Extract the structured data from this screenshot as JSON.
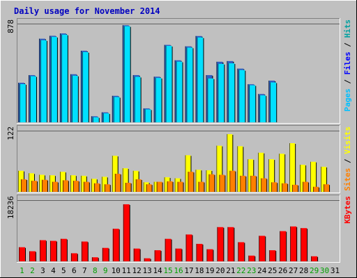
{
  "chart_data": {
    "type": "bar",
    "title": "Daily usage for November 2014",
    "colors": {
      "pages": "#00c0ff",
      "pages_shadow": "#3060c0",
      "files": "#00e0ff",
      "hits": "#00a0c0",
      "sites": "#ff8000",
      "visits": "#ffff00",
      "kbytes": "#ff0000",
      "weekend_label": "#00a000",
      "weekday_label": "#000000",
      "title": "#0000c0"
    },
    "days": [
      {
        "label": "1",
        "weekend": true
      },
      {
        "label": "2",
        "weekend": true
      },
      {
        "label": "3",
        "weekend": false
      },
      {
        "label": "4",
        "weekend": false
      },
      {
        "label": "5",
        "weekend": false
      },
      {
        "label": "6",
        "weekend": false
      },
      {
        "label": "7",
        "weekend": false
      },
      {
        "label": "8",
        "weekend": true
      },
      {
        "label": "9",
        "weekend": true
      },
      {
        "label": "10",
        "weekend": false
      },
      {
        "label": "11",
        "weekend": false
      },
      {
        "label": "12",
        "weekend": false
      },
      {
        "label": "13",
        "weekend": false
      },
      {
        "label": "14",
        "weekend": false
      },
      {
        "label": "15",
        "weekend": true
      },
      {
        "label": "16",
        "weekend": true
      },
      {
        "label": "17",
        "weekend": false
      },
      {
        "label": "18",
        "weekend": false
      },
      {
        "label": "19",
        "weekend": false
      },
      {
        "label": "20",
        "weekend": false
      },
      {
        "label": "21",
        "weekend": false
      },
      {
        "label": "22",
        "weekend": true
      },
      {
        "label": "23",
        "weekend": true
      },
      {
        "label": "24",
        "weekend": false
      },
      {
        "label": "25",
        "weekend": false
      },
      {
        "label": "26",
        "weekend": false
      },
      {
        "label": "27",
        "weekend": false
      },
      {
        "label": "28",
        "weekend": false
      },
      {
        "label": "29",
        "weekend": true
      },
      {
        "label": "30",
        "weekend": true
      },
      {
        "label": "31",
        "weekend": false
      }
    ],
    "panels": [
      {
        "name": "hits_files_pages",
        "ymax_label": "878",
        "ymax": 878,
        "right_label": [
          {
            "text": "Pages",
            "color": "#00c0ff"
          },
          {
            "text": " / ",
            "color": "#000000"
          },
          {
            "text": "Files",
            "color": "#0000ff"
          },
          {
            "text": " / ",
            "color": "#000000"
          },
          {
            "text": "Hits",
            "color": "#00a0a0"
          }
        ],
        "series": [
          {
            "key": "back",
            "values": [
              352,
              420,
              744,
              770,
              791,
              428,
              637,
              54,
              89,
              236,
              864,
              420,
              124,
              406,
              689,
              552,
              676,
              768,
              420,
              539,
              545,
              478,
              339,
              252,
              371,
              0,
              0,
              0,
              0,
              0,
              0
            ]
          },
          {
            "key": "front",
            "values": [
              340,
              410,
              730,
              760,
              780,
              415,
              625,
              45,
              80,
              225,
              855,
              405,
              115,
              395,
              680,
              540,
              665,
              755,
              390,
              520,
              525,
              465,
              330,
              240,
              355,
              0,
              0,
              0,
              0,
              0,
              0
            ]
          }
        ]
      },
      {
        "name": "visits_sites",
        "ymax_label": "122",
        "ymax": 122,
        "right_label": [
          {
            "text": "Sites",
            "color": "#ff8000"
          },
          {
            "text": " / ",
            "color": "#000000"
          },
          {
            "text": "Visits",
            "color": "#ffff00"
          }
        ],
        "series": [
          {
            "key": "visits",
            "values": [
              42,
              37,
              34,
              33,
              40,
              33,
              32,
              26,
              30,
              72,
              47,
              42,
              19,
              20,
              29,
              27,
              73,
              44,
              43,
              92,
              115,
              91,
              65,
              78,
              65,
              76,
              97,
              54,
              60,
              50,
              0
            ]
          },
          {
            "key": "sites",
            "values": [
              25,
              22,
              24,
              20,
              23,
              22,
              20,
              17,
              15,
              36,
              18,
              25,
              15,
              20,
              21,
              20,
              40,
              20,
              35,
              34,
              42,
              32,
              32,
              27,
              19,
              17,
              14,
              20,
              10,
              15,
              0
            ]
          }
        ]
      },
      {
        "name": "kbytes",
        "ymax_label": "18236",
        "ymax": 18236,
        "right_label": [
          {
            "text": "KBytes",
            "color": "#ff0000"
          }
        ],
        "series": [
          {
            "key": "kbytes",
            "values": [
              4200,
              3000,
              6300,
              6100,
              6700,
              2400,
              5900,
              1200,
              4000,
              9700,
              17000,
              3800,
              900,
              3300,
              6700,
              3800,
              8000,
              5200,
              3600,
              10200,
              10200,
              5700,
              1700,
              7600,
              3300,
              9000,
              10400,
              9900,
              1500,
              0,
              0
            ]
          }
        ]
      }
    ],
    "days_with_data": 29
  }
}
